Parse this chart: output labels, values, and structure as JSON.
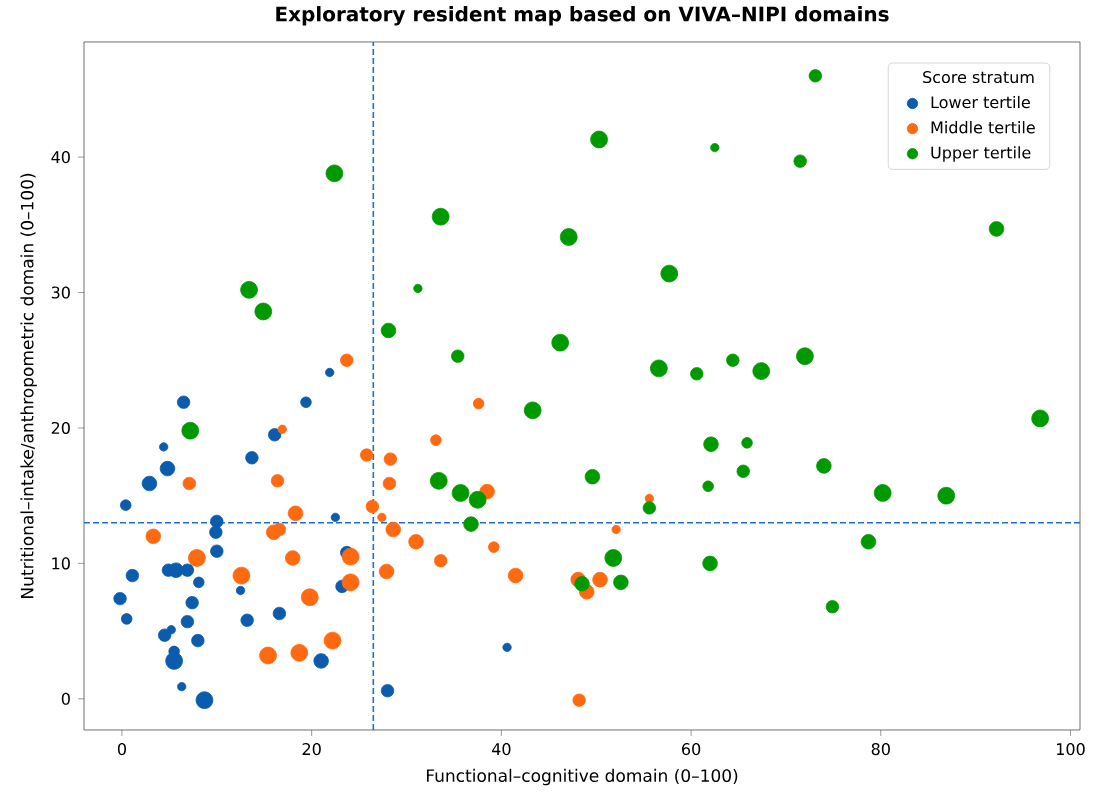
{
  "chart_data": {
    "type": "bubble",
    "title": "Exploratory resident map based on VIVA–NIPI domains",
    "xlabel": "Functional–cognitive domain (0–100)",
    "ylabel": "Nutritional–intake/anthropometric domain (0–100)",
    "legend_title": "Score stratum",
    "legend": "top right",
    "marker": "circle",
    "xlim": [
      -4,
      101
    ],
    "ylim": [
      -2.3,
      48.5
    ],
    "xticks": [
      0,
      20,
      40,
      60,
      80,
      100
    ],
    "yticks": [
      0,
      10,
      20,
      30,
      40
    ],
    "ref_lines": [
      {
        "axis": "x",
        "value": 26.5,
        "color": "#1a6fd0",
        "line_style": "dashed"
      },
      {
        "axis": "y",
        "value": 13,
        "color": "#1a6fd0",
        "line_style": "dashed"
      }
    ],
    "series": [
      {
        "name": "Lower tertile",
        "color": "#0b5cad",
        "x": [
          21.9,
          6.5,
          19.4,
          16.1,
          4.4,
          4.8,
          13.7,
          2.9,
          0.4,
          22.5,
          10.0,
          9.9,
          10.0,
          23.7,
          1.1,
          4.9,
          5.7,
          6.9,
          8.1,
          23.2,
          12.5,
          -0.2,
          7.4,
          0.5,
          6.9,
          16.6,
          13.2,
          4.5,
          5.2,
          8.0,
          5.5,
          5.5,
          21.0,
          6.3,
          8.7,
          28.0,
          40.6
        ],
        "values": [
          24.1,
          21.9,
          21.9,
          19.5,
          18.6,
          17.0,
          17.8,
          15.9,
          14.3,
          13.4,
          13.1,
          12.3,
          10.9,
          10.8,
          9.1,
          9.5,
          9.5,
          9.5,
          8.6,
          8.3,
          8.0,
          7.4,
          7.1,
          5.9,
          5.7,
          6.3,
          5.8,
          4.7,
          5.1,
          4.3,
          3.5,
          2.8,
          2.8,
          0.9,
          -0.1,
          0.6,
          3.8
        ],
        "sizes": [
          0.25,
          0.55,
          0.4,
          0.55,
          0.25,
          0.75,
          0.55,
          0.75,
          0.4,
          0.25,
          0.55,
          0.55,
          0.55,
          0.55,
          0.55,
          0.55,
          0.75,
          0.55,
          0.4,
          0.55,
          0.25,
          0.55,
          0.55,
          0.4,
          0.55,
          0.55,
          0.55,
          0.55,
          0.25,
          0.55,
          0.4,
          1,
          0.75,
          0.25,
          1,
          0.55,
          0.25
        ]
      },
      {
        "name": "Middle tertile",
        "color": "#ff6a10",
        "x": [
          23.7,
          16.9,
          25.8,
          28.3,
          7.1,
          16.4,
          28.2,
          18.3,
          26.4,
          27.4,
          3.3,
          16.0,
          16.6,
          28.6,
          31.0,
          7.9,
          18.0,
          24.1,
          12.6,
          27.9,
          24.1,
          19.8,
          15.4,
          18.7,
          22.2,
          37.6,
          33.1,
          38.5,
          55.6,
          39.2,
          52.1,
          33.6,
          41.5,
          48.1,
          49.0,
          50.4,
          48.2
        ],
        "values": [
          25.0,
          19.9,
          18.0,
          17.7,
          15.9,
          16.1,
          15.9,
          13.7,
          14.2,
          13.4,
          12.0,
          12.3,
          12.5,
          12.5,
          11.6,
          10.4,
          10.4,
          10.5,
          9.1,
          9.4,
          8.6,
          7.5,
          3.2,
          3.4,
          4.3,
          21.8,
          19.1,
          15.3,
          14.8,
          11.2,
          12.5,
          10.2,
          9.1,
          8.8,
          7.9,
          8.8,
          -0.1
        ],
        "sizes": [
          0.55,
          0.25,
          0.55,
          0.55,
          0.55,
          0.55,
          0.55,
          0.75,
          0.55,
          0.25,
          0.75,
          0.75,
          0.55,
          0.75,
          0.75,
          1,
          0.75,
          1,
          1,
          0.75,
          1,
          1,
          1,
          1,
          1,
          0.4,
          0.4,
          0.75,
          0.25,
          0.4,
          0.25,
          0.55,
          0.75,
          0.75,
          0.75,
          0.75,
          0.55
        ]
      },
      {
        "name": "Upper tertile",
        "color": "#009a00",
        "x": [
          22.4,
          13.4,
          14.9,
          31.2,
          28.1,
          7.2,
          50.3,
          62.5,
          33.6,
          47.1,
          57.7,
          35.4,
          46.2,
          56.6,
          60.6,
          64.4,
          43.3,
          62.1,
          33.4,
          35.7,
          37.5,
          49.6,
          61.8,
          55.6,
          36.8,
          51.8,
          62.0,
          48.5,
          52.6,
          73.1,
          71.5,
          92.2,
          67.4,
          72.0,
          96.8,
          65.9,
          65.5,
          74.0,
          80.2,
          86.9,
          78.7,
          74.9
        ],
        "values": [
          38.8,
          30.2,
          28.6,
          30.3,
          27.2,
          19.8,
          41.3,
          40.7,
          35.6,
          34.1,
          31.4,
          25.3,
          26.3,
          24.4,
          24.0,
          25.0,
          21.3,
          18.8,
          16.1,
          15.2,
          14.7,
          16.4,
          15.7,
          14.1,
          12.9,
          10.4,
          10.0,
          8.5,
          8.6,
          46.0,
          39.7,
          34.7,
          24.2,
          25.3,
          20.7,
          18.9,
          16.8,
          17.2,
          15.2,
          15.0,
          11.6,
          6.8
        ],
        "sizes": [
          1,
          1,
          1,
          0.25,
          0.75,
          1,
          1,
          0.25,
          1,
          1,
          1,
          0.55,
          1,
          1,
          0.55,
          0.55,
          1,
          0.75,
          1,
          1,
          1,
          0.75,
          0.4,
          0.55,
          0.75,
          1,
          0.75,
          0.75,
          0.75,
          0.55,
          0.55,
          0.75,
          1,
          1,
          1,
          0.4,
          0.55,
          0.75,
          1,
          1,
          0.75,
          0.55
        ]
      }
    ]
  }
}
